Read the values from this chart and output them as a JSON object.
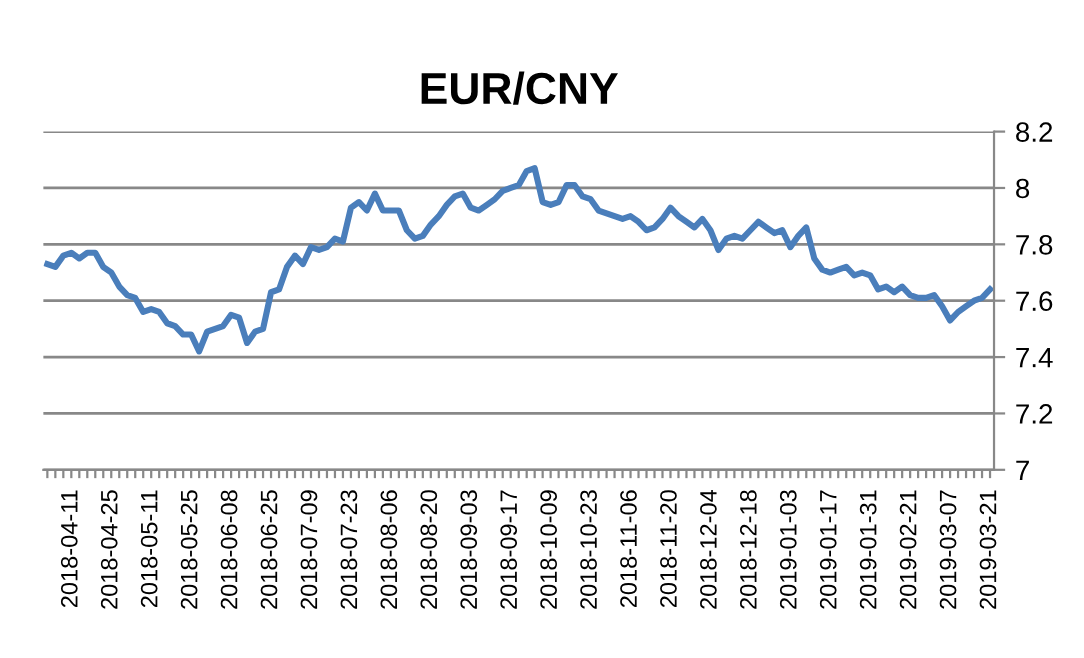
{
  "chart_data": {
    "type": "line",
    "title": "EUR/CNY",
    "categories": [
      null,
      null,
      null,
      "2018-04-11",
      null,
      null,
      null,
      null,
      "2018-04-25",
      null,
      null,
      null,
      null,
      "2018-05-11",
      null,
      null,
      null,
      null,
      "2018-05-25",
      null,
      null,
      null,
      null,
      "2018-06-08",
      null,
      null,
      null,
      null,
      "2018-06-25",
      null,
      null,
      null,
      null,
      "2018-07-09",
      null,
      null,
      null,
      null,
      "2018-07-23",
      null,
      null,
      null,
      null,
      "2018-08-06",
      null,
      null,
      null,
      null,
      "2018-08-20",
      null,
      null,
      null,
      null,
      "2018-09-03",
      null,
      null,
      null,
      null,
      "2018-09-17",
      null,
      null,
      null,
      null,
      "2018-10-09",
      null,
      null,
      null,
      null,
      "2018-10-23",
      null,
      null,
      null,
      null,
      "2018-11-06",
      null,
      null,
      null,
      null,
      "2018-11-20",
      null,
      null,
      null,
      null,
      "2018-12-04",
      null,
      null,
      null,
      null,
      "2018-12-18",
      null,
      null,
      null,
      null,
      "2019-01-03",
      null,
      null,
      null,
      null,
      "2019-01-17",
      null,
      null,
      null,
      null,
      "2019-01-31",
      null,
      null,
      null,
      null,
      "2019-02-21",
      null,
      null,
      null,
      null,
      "2019-03-07",
      null,
      null,
      null,
      null,
      "2019-03-21"
    ],
    "series": [
      {
        "color": "#4a7ebb",
        "values": [
          7.73,
          7.72,
          7.76,
          7.77,
          7.75,
          7.77,
          7.77,
          7.72,
          7.7,
          7.65,
          7.62,
          7.61,
          7.56,
          7.57,
          7.56,
          7.52,
          7.51,
          7.48,
          7.48,
          7.42,
          7.49,
          7.5,
          7.51,
          7.55,
          7.54,
          7.45,
          7.49,
          7.5,
          7.63,
          7.64,
          7.72,
          7.76,
          7.73,
          7.79,
          7.78,
          7.79,
          7.82,
          7.81,
          7.93,
          7.95,
          7.92,
          7.98,
          7.92,
          7.92,
          7.92,
          7.85,
          7.82,
          7.83,
          7.87,
          7.9,
          7.94,
          7.97,
          7.98,
          7.93,
          7.92,
          7.94,
          7.96,
          7.99,
          8.0,
          8.01,
          8.06,
          8.07,
          7.95,
          7.94,
          7.95,
          8.01,
          8.01,
          7.97,
          7.96,
          7.92,
          7.91,
          7.9,
          7.89,
          7.9,
          7.88,
          7.85,
          7.86,
          7.89,
          7.93,
          7.9,
          7.88,
          7.86,
          7.89,
          7.85,
          7.78,
          7.82,
          7.83,
          7.82,
          7.85,
          7.88,
          7.86,
          7.84,
          7.85,
          7.79,
          7.83,
          7.86,
          7.75,
          7.71,
          7.7,
          7.71,
          7.72,
          7.69,
          7.7,
          7.69,
          7.64,
          7.65,
          7.63,
          7.65,
          7.62,
          7.61,
          7.61,
          7.62,
          7.58,
          7.53,
          7.56,
          7.58,
          7.6,
          7.61,
          7.64
        ]
      }
    ],
    "ylim": [
      7,
      8.2
    ],
    "yticks": [
      7,
      7.2,
      7.4,
      7.6,
      7.8,
      8,
      8.2
    ],
    "grid": "y",
    "legend": false,
    "marker": "none",
    "line_style": "solid"
  }
}
